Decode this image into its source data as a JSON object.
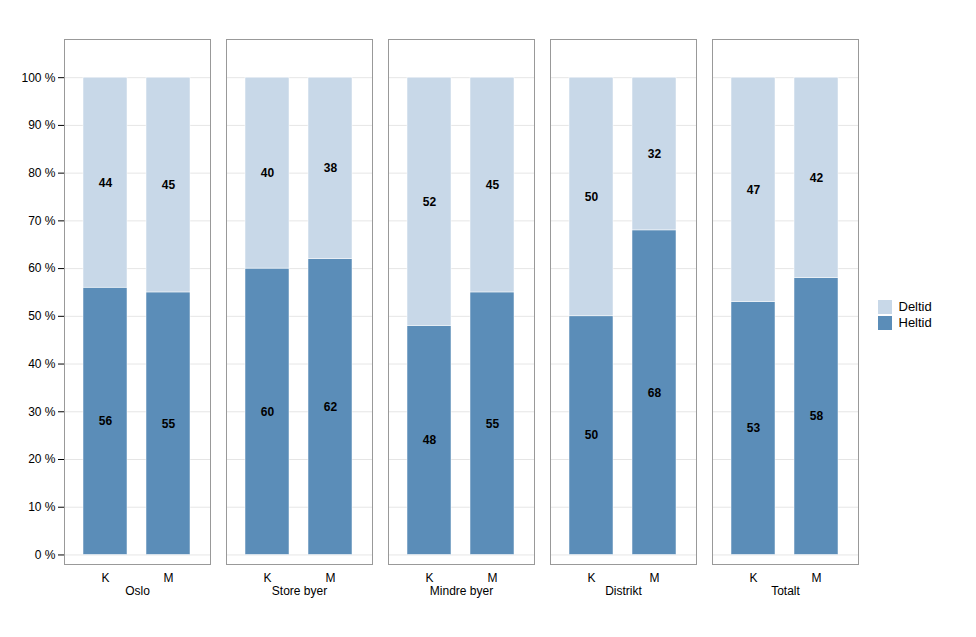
{
  "chart_data": {
    "type": "bar",
    "stacked": true,
    "categories": [
      "K",
      "M",
      "K",
      "M",
      "K",
      "M",
      "K",
      "M",
      "K",
      "M"
    ],
    "groups": [
      "Oslo",
      "Store byer",
      "Mindre byer",
      "Distrikt",
      "Totalt"
    ],
    "series": [
      {
        "name": "Heltid",
        "color": "#5B8DB8",
        "values": [
          56,
          55,
          60,
          62,
          48,
          55,
          50,
          68,
          53,
          58
        ]
      },
      {
        "name": "Deltid",
        "color": "#C8D8E8",
        "values": [
          44,
          45,
          40,
          38,
          52,
          45,
          50,
          32,
          47,
          42
        ]
      }
    ],
    "ylim": [
      -2,
      108
    ],
    "yticks": [
      {
        "value": 0,
        "label": "0 %"
      },
      {
        "value": 10,
        "label": "10 %"
      },
      {
        "value": 20,
        "label": "20 %"
      },
      {
        "value": 30,
        "label": "30 %"
      },
      {
        "value": 40,
        "label": "40 %"
      },
      {
        "value": 50,
        "label": "50 %"
      },
      {
        "value": 60,
        "label": "60 %"
      },
      {
        "value": 70,
        "label": "70 %"
      },
      {
        "value": 80,
        "label": "80 %"
      },
      {
        "value": 90,
        "label": "90 %"
      },
      {
        "value": 100,
        "label": "100 %"
      }
    ],
    "grid": true,
    "legend": "right",
    "data_labels": true
  }
}
